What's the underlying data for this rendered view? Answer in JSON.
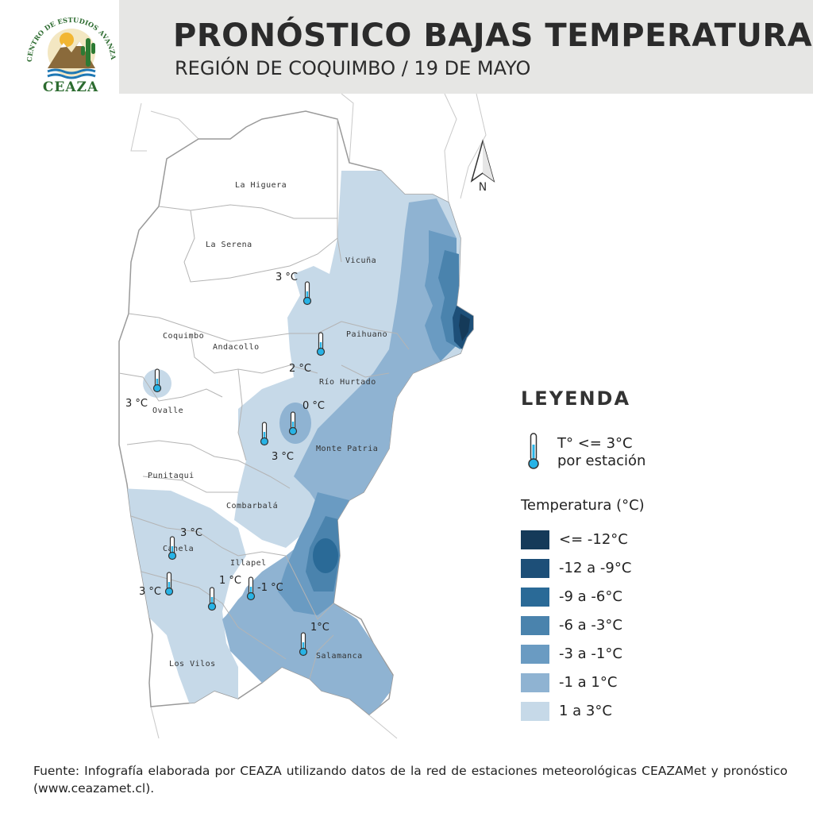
{
  "header": {
    "title": "PRONÓSTICO BAJAS TEMPERATURAS",
    "subtitle": "REGIÓN DE COQUIMBO / 19 DE MAYO"
  },
  "logo": {
    "text": "CEAZA",
    "arc_text": "CENTRO DE ESTUDIOS AVANZADOS EN ZONAS ÁRIDAS"
  },
  "north_arrow": {
    "label": "N"
  },
  "communes": [
    {
      "id": "la-higuera",
      "name": "La Higuera"
    },
    {
      "id": "la-serena",
      "name": "La Serena"
    },
    {
      "id": "vicuna",
      "name": "Vicuña"
    },
    {
      "id": "paihuano",
      "name": "Paihuano"
    },
    {
      "id": "coquimbo",
      "name": "Coquimbo"
    },
    {
      "id": "andacollo",
      "name": "Andacollo"
    },
    {
      "id": "rio-hurtado",
      "name": "Río Hurtado"
    },
    {
      "id": "ovalle",
      "name": "Ovalle"
    },
    {
      "id": "monte-patria",
      "name": "Monte Patria"
    },
    {
      "id": "punitaqui",
      "name": "Punitaqui"
    },
    {
      "id": "combarbala",
      "name": "Combarbalá"
    },
    {
      "id": "canela",
      "name": "Canela"
    },
    {
      "id": "illapel",
      "name": "Illapel"
    },
    {
      "id": "los-vilos",
      "name": "Los Vilos"
    },
    {
      "id": "salamanca",
      "name": "Salamanca"
    }
  ],
  "stations": [
    {
      "temp": "3 °C"
    },
    {
      "temp": "2 °C"
    },
    {
      "temp": "3 °C"
    },
    {
      "temp": "0 °C"
    },
    {
      "temp": "3 °C"
    },
    {
      "temp": "3 °C"
    },
    {
      "temp": "3 °C"
    },
    {
      "temp": "1 °C"
    },
    {
      "temp": "-1 °C"
    },
    {
      "temp": "1°C"
    }
  ],
  "legend": {
    "title": "LEYENDA",
    "station_line1": "T° <= 3°C",
    "station_line2": "por estación",
    "temp_heading": "Temperatura (°C)",
    "classes": [
      {
        "label": "<= -12°C",
        "color": "#153a59"
      },
      {
        "label": "-12 a -9°C",
        "color": "#1d4f78"
      },
      {
        "label": "-9 a -6°C",
        "color": "#2a6a97"
      },
      {
        "label": "-6 a -3°C",
        "color": "#4a83ad"
      },
      {
        "label": "-3 a -1°C",
        "color": "#6a9bc2"
      },
      {
        "label": "-1 a 1°C",
        "color": "#8fb3d2"
      },
      {
        "label": "1 a 3°C",
        "color": "#c6d9e8"
      }
    ]
  },
  "footer": {
    "text": "Fuente: Infografía elaborada por CEAZA utilizando datos de la red de estaciones meteorológicas CEAZAMet y pronóstico (www.ceazamet.cl)."
  }
}
